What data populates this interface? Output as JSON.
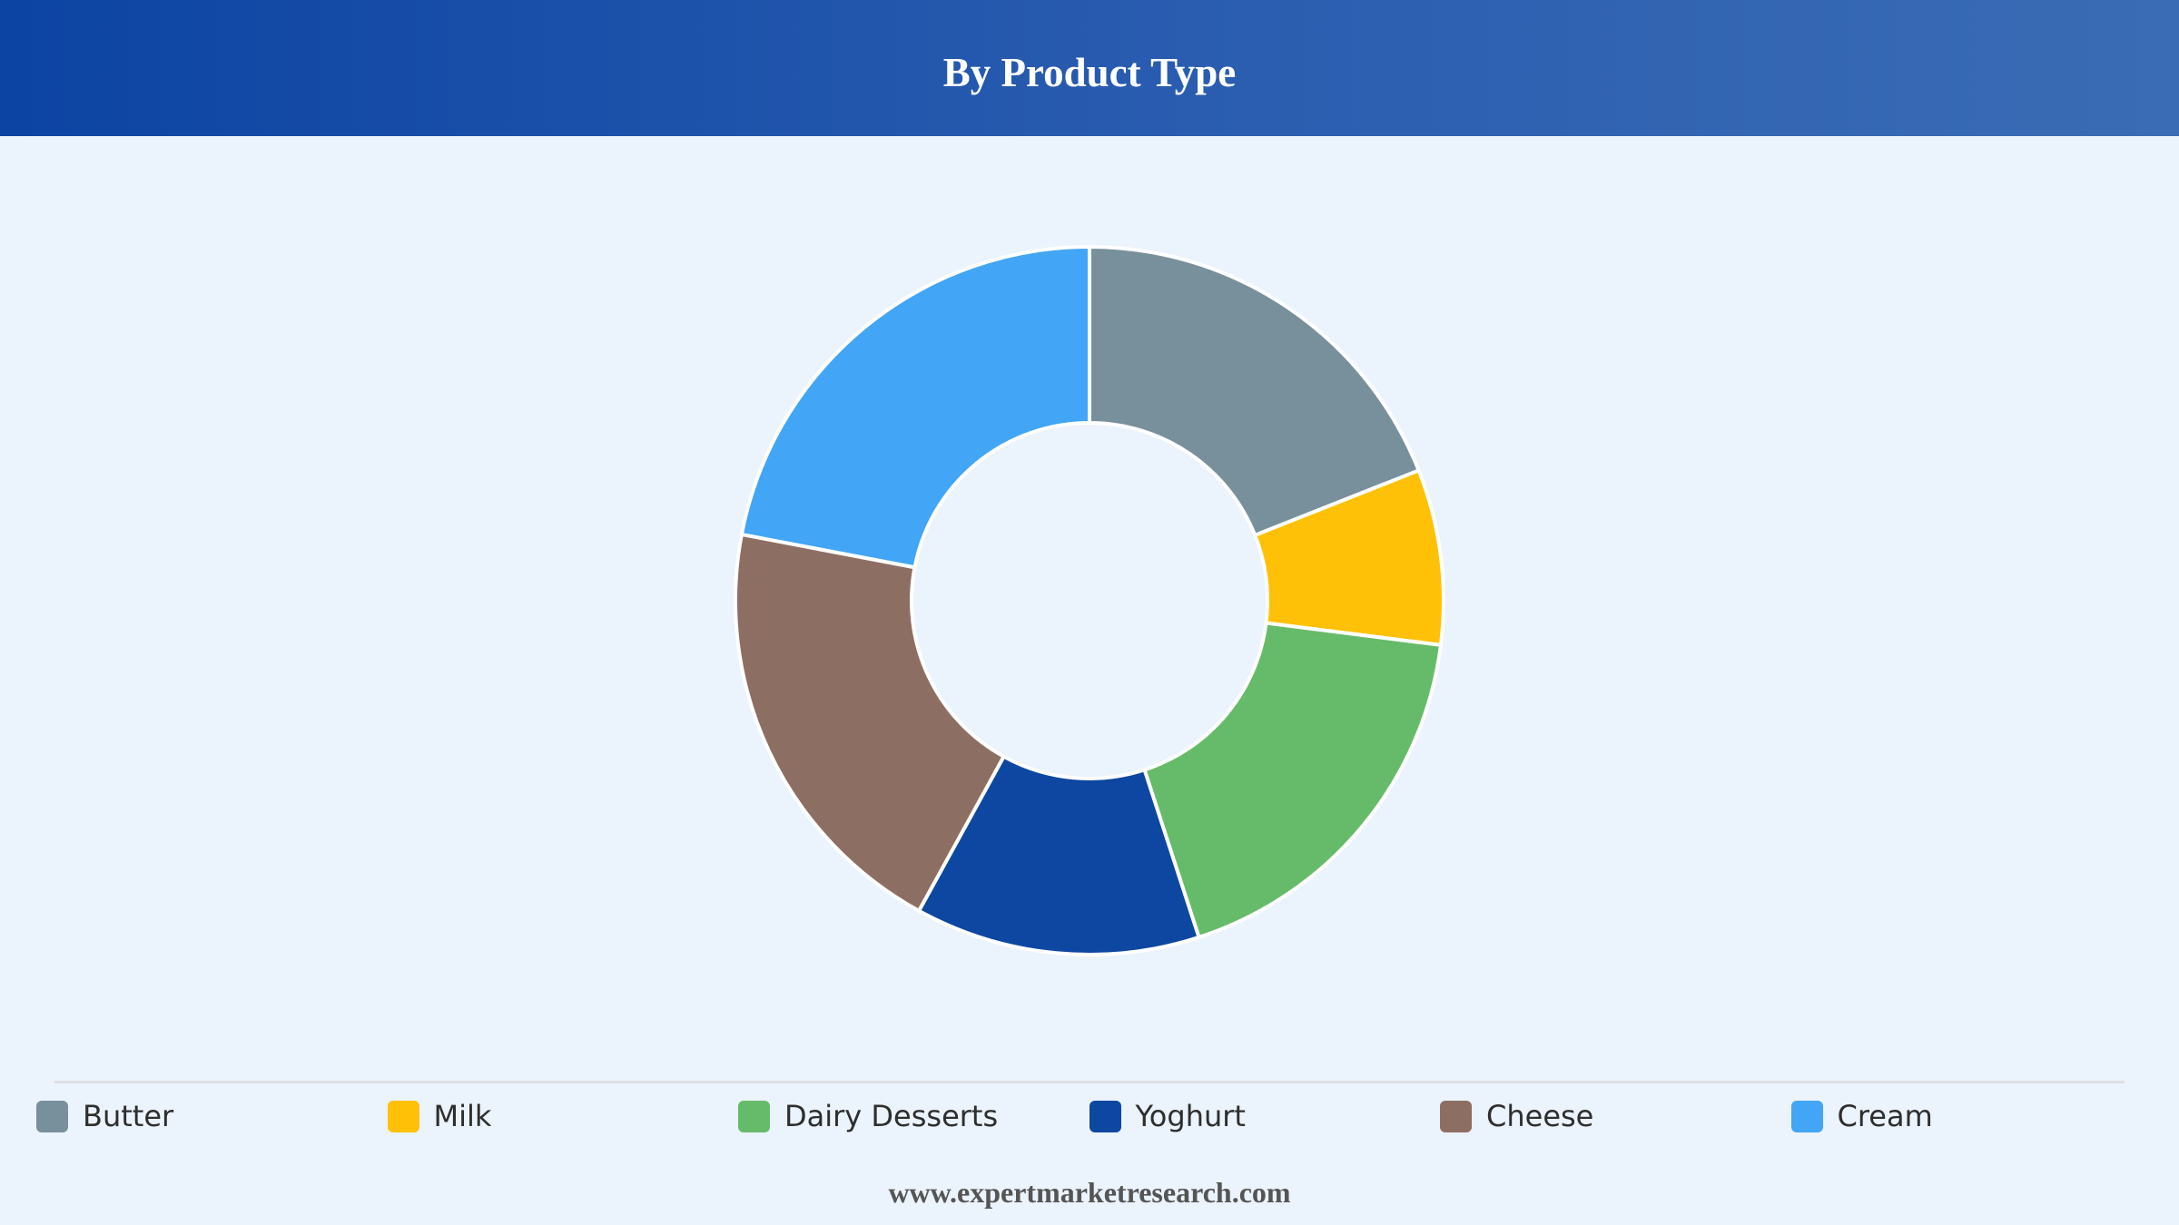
{
  "header": {
    "title": "By Product Type"
  },
  "chart_data": {
    "type": "pie",
    "donut": true,
    "title": "By Product Type",
    "legend_position": "bottom",
    "categories": [
      "Butter",
      "Milk",
      "Dairy Desserts",
      "Yoghurt",
      "Cheese",
      "Cream"
    ],
    "values": [
      19,
      8,
      18,
      13,
      20,
      22
    ],
    "colors": [
      "#78909c",
      "#ffc107",
      "#66bb6a",
      "#0d47a1",
      "#8d6e63",
      "#42a5f5"
    ]
  },
  "footer": {
    "website": "www.expertmarketresearch.com"
  }
}
